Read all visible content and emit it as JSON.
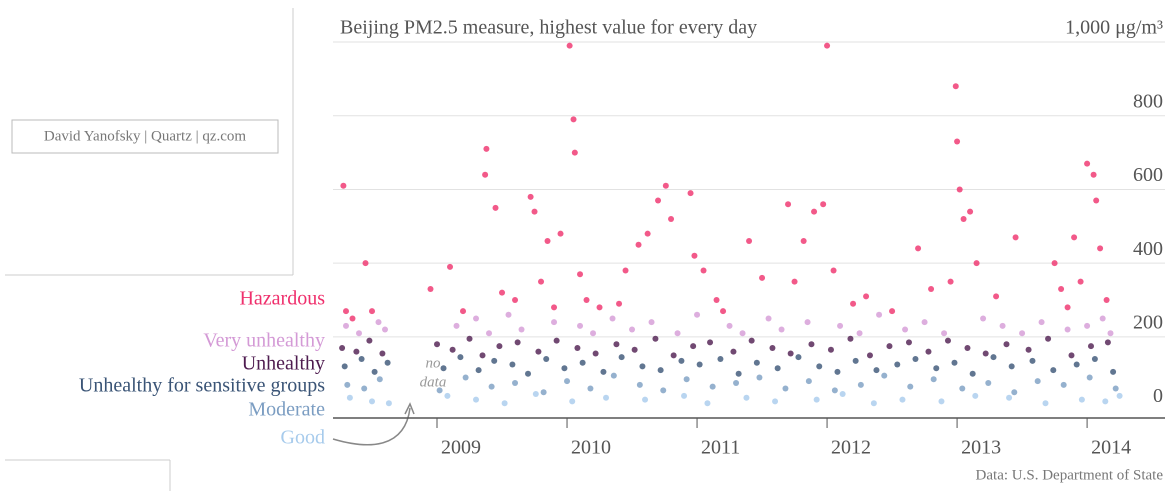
{
  "chart_data": {
    "type": "scatter",
    "title": "Beijing PM2.5 measure, highest value for every day",
    "credit": "David Yanofsky | Quartz | qz.com",
    "source": "Data: U.S. Department of State",
    "no_data": [
      "no",
      "data"
    ],
    "xlim": [
      2008.2,
      2014.33
    ],
    "xticks": [
      2009,
      2010,
      2011,
      2012,
      2013,
      2014
    ],
    "ylim": [
      -20,
      1000
    ],
    "yticks": [
      0,
      200,
      400,
      600,
      800,
      {
        "value": 1000,
        "label": "1,000 μg/m³"
      }
    ],
    "grid": true,
    "series": [
      {
        "name": "Hazardous",
        "color": "#ef2f6c",
        "x": [
          2008.28,
          2008.3,
          2008.35,
          2008.45,
          2008.5,
          2008.95,
          2009.1,
          2009.2,
          2009.38,
          2009.37,
          2009.45,
          2009.5,
          2009.6,
          2009.72,
          2009.75,
          2009.8,
          2009.85,
          2009.9,
          2010.02,
          2010.05,
          2010.06,
          2010.1,
          2010.15,
          2010.25,
          2010.4,
          2010.55,
          2010.62,
          2010.7,
          2010.76,
          2010.8,
          2010.95,
          2010.98,
          2011.05,
          2011.2,
          2011.4,
          2011.5,
          2011.7,
          2011.75,
          2011.82,
          2011.9,
          2011.97,
          2012.0,
          2012.05,
          2012.2,
          2012.3,
          2012.5,
          2012.7,
          2012.8,
          2012.95,
          2012.99,
          2013.0,
          2013.02,
          2013.05,
          2013.1,
          2013.15,
          2013.3,
          2013.45,
          2013.75,
          2013.8,
          2013.9,
          2013.95,
          2014.0,
          2014.05,
          2014.07,
          2014.1,
          2014.15,
          2013.85,
          2011.15,
          2009.95,
          2010.45
        ],
        "values": [
          610,
          270,
          250,
          400,
          270,
          330,
          390,
          270,
          710,
          640,
          550,
          320,
          300,
          580,
          540,
          350,
          460,
          280,
          990,
          790,
          700,
          370,
          300,
          280,
          290,
          450,
          480,
          570,
          610,
          520,
          590,
          420,
          380,
          270,
          460,
          360,
          560,
          350,
          460,
          540,
          560,
          990,
          380,
          290,
          310,
          270,
          440,
          330,
          350,
          880,
          730,
          600,
          520,
          540,
          400,
          310,
          470,
          400,
          330,
          470,
          350,
          670,
          640,
          570,
          440,
          300,
          280,
          300,
          480,
          380
        ]
      },
      {
        "name": "Very unhealthy",
        "color": "#d49ad6",
        "x": [
          2008.3,
          2008.4,
          2008.55,
          2008.6,
          2009.15,
          2009.3,
          2009.4,
          2009.55,
          2009.65,
          2009.9,
          2010.1,
          2010.2,
          2010.35,
          2010.5,
          2010.65,
          2010.85,
          2011.0,
          2011.25,
          2011.35,
          2011.55,
          2011.65,
          2011.85,
          2012.1,
          2012.25,
          2012.4,
          2012.6,
          2012.75,
          2012.9,
          2013.2,
          2013.35,
          2013.5,
          2013.65,
          2013.85,
          2014.0,
          2014.12,
          2014.18
        ],
        "values": [
          230,
          210,
          240,
          220,
          230,
          250,
          210,
          260,
          220,
          240,
          230,
          210,
          250,
          220,
          240,
          210,
          260,
          230,
          210,
          250,
          220,
          240,
          230,
          210,
          260,
          220,
          240,
          210,
          250,
          230,
          210,
          240,
          220,
          230,
          250,
          210
        ]
      },
      {
        "name": "Unhealthy",
        "color": "#4e1b4f",
        "x": [
          2008.27,
          2008.38,
          2008.48,
          2008.58,
          2009.0,
          2009.12,
          2009.25,
          2009.35,
          2009.48,
          2009.62,
          2009.78,
          2009.92,
          2010.08,
          2010.22,
          2010.38,
          2010.52,
          2010.68,
          2010.82,
          2010.97,
          2011.1,
          2011.28,
          2011.42,
          2011.58,
          2011.72,
          2011.88,
          2012.03,
          2012.18,
          2012.33,
          2012.48,
          2012.63,
          2012.78,
          2012.93,
          2013.08,
          2013.22,
          2013.38,
          2013.55,
          2013.7,
          2013.88,
          2014.03,
          2014.16
        ],
        "values": [
          170,
          160,
          190,
          155,
          180,
          165,
          195,
          150,
          175,
          185,
          160,
          190,
          170,
          155,
          180,
          165,
          195,
          150,
          175,
          185,
          160,
          190,
          170,
          155,
          180,
          165,
          195,
          150,
          175,
          185,
          160,
          190,
          170,
          155,
          180,
          165,
          195,
          150,
          175,
          185
        ]
      },
      {
        "name": "Unhealthy for sensitive groups",
        "color": "#3a5476",
        "x": [
          2008.29,
          2008.42,
          2008.52,
          2008.62,
          2009.05,
          2009.18,
          2009.32,
          2009.44,
          2009.58,
          2009.7,
          2009.84,
          2009.98,
          2010.12,
          2010.28,
          2010.42,
          2010.58,
          2010.72,
          2010.88,
          2011.02,
          2011.18,
          2011.32,
          2011.46,
          2011.62,
          2011.78,
          2011.94,
          2012.08,
          2012.22,
          2012.38,
          2012.54,
          2012.68,
          2012.84,
          2012.98,
          2013.12,
          2013.28,
          2013.42,
          2013.58,
          2013.74,
          2013.92,
          2014.06,
          2014.2
        ],
        "values": [
          120,
          140,
          105,
          130,
          115,
          145,
          110,
          135,
          125,
          100,
          140,
          115,
          130,
          105,
          145,
          120,
          110,
          135,
          125,
          140,
          100,
          130,
          115,
          145,
          120,
          105,
          135,
          110,
          125,
          140,
          115,
          130,
          100,
          145,
          120,
          135,
          110,
          125,
          140,
          105
        ]
      },
      {
        "name": "Moderate",
        "color": "#7b9dc2",
        "x": [
          2008.31,
          2008.44,
          2008.56,
          2009.02,
          2009.22,
          2009.42,
          2009.6,
          2009.82,
          2010.0,
          2010.18,
          2010.36,
          2010.56,
          2010.74,
          2010.92,
          2011.12,
          2011.3,
          2011.48,
          2011.68,
          2011.86,
          2012.06,
          2012.26,
          2012.44,
          2012.64,
          2012.82,
          2013.04,
          2013.24,
          2013.44,
          2013.62,
          2013.82,
          2014.02,
          2014.22
        ],
        "values": [
          70,
          60,
          85,
          55,
          90,
          65,
          75,
          50,
          80,
          60,
          95,
          70,
          55,
          85,
          65,
          75,
          90,
          60,
          80,
          55,
          70,
          95,
          65,
          85,
          60,
          75,
          50,
          80,
          70,
          90,
          60
        ]
      },
      {
        "name": "Good",
        "color": "#a7cbec",
        "x": [
          2008.33,
          2008.5,
          2008.63,
          2009.08,
          2009.3,
          2009.52,
          2009.76,
          2010.04,
          2010.3,
          2010.6,
          2010.9,
          2011.08,
          2011.38,
          2011.6,
          2011.92,
          2012.12,
          2012.36,
          2012.58,
          2012.88,
          2013.14,
          2013.4,
          2013.68,
          2013.96,
          2014.14,
          2014.25
        ],
        "values": [
          35,
          25,
          20,
          40,
          30,
          20,
          45,
          25,
          35,
          30,
          40,
          20,
          35,
          25,
          30,
          45,
          20,
          30,
          25,
          40,
          35,
          20,
          30,
          25,
          40
        ]
      }
    ]
  }
}
